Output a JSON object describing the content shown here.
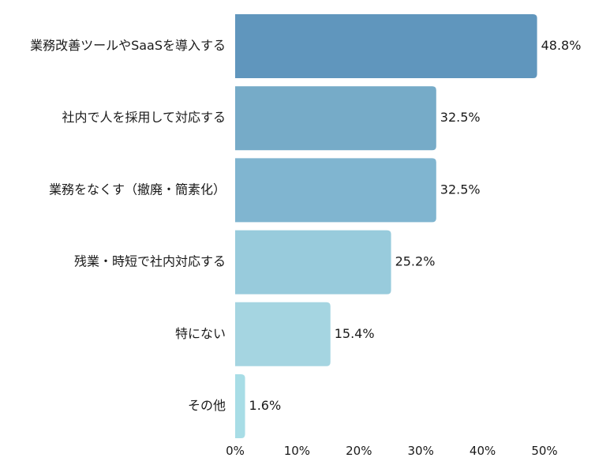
{
  "chart_data": {
    "type": "bar",
    "orientation": "horizontal",
    "categories": [
      "業務改善ツールやSaaSを導入する",
      "社内で人を採用して対応する",
      "業務をなくす（撤廃・簡素化）",
      "残業・時短で社内対応する",
      "特にない",
      "その他"
    ],
    "values": [
      48.8,
      32.5,
      32.5,
      25.2,
      15.4,
      1.6
    ],
    "value_labels": [
      "48.8%",
      "32.5%",
      "32.5%",
      "25.2%",
      "15.4%",
      "1.6%"
    ],
    "colors": [
      "#6096bd",
      "#76abc8",
      "#80b5d0",
      "#98cbdc",
      "#a5d5e1",
      "#a8dde6"
    ],
    "xlim": [
      0,
      50
    ],
    "x_ticks": [
      0,
      10,
      20,
      30,
      40,
      50
    ],
    "x_tick_labels": [
      "0%",
      "10%",
      "20%",
      "30%",
      "40%",
      "50%"
    ],
    "grid": false,
    "legend": "none",
    "title": "",
    "xlabel": "",
    "ylabel": ""
  }
}
